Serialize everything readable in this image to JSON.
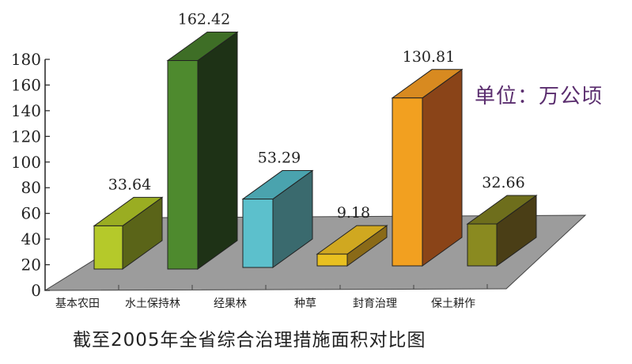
{
  "title": "截至2005年全省综合治理措施面积对比图",
  "unit": "单位：万公顷",
  "chart_data": {
    "type": "bar",
    "style": "3d",
    "title": "截至2005年全省综合治理措施面积对比图",
    "unit": "万公顷",
    "xlabel": "",
    "ylabel": "",
    "ylim": [
      0,
      180
    ],
    "yticks": [
      0,
      20,
      40,
      60,
      80,
      100,
      120,
      140,
      160,
      180
    ],
    "categories": [
      "基本农田",
      "水土保持林",
      "经果林",
      "种草",
      "封育治理",
      "保土耕作"
    ],
    "values": [
      33.64,
      162.42,
      53.29,
      9.18,
      130.81,
      32.66
    ],
    "value_labels": [
      "33.64",
      "162.42",
      "53.29",
      "9.18",
      "130.81",
      "32.66"
    ],
    "colors": {
      "front": [
        "#b5c92a",
        "#4e8a2e",
        "#5cc0cc",
        "#e8c020",
        "#f2a020",
        "#8a8a20"
      ],
      "top": [
        "#9aad22",
        "#3e6e26",
        "#4aa3ae",
        "#d0a820",
        "#d88a20",
        "#6e6e1c"
      ],
      "side": [
        "#5a6418",
        "#1e3216",
        "#3a6a6e",
        "#8a6a18",
        "#8a4418",
        "#4a3e16"
      ]
    },
    "floor_color": "#9a9a9a",
    "grid": false,
    "legend": null
  }
}
